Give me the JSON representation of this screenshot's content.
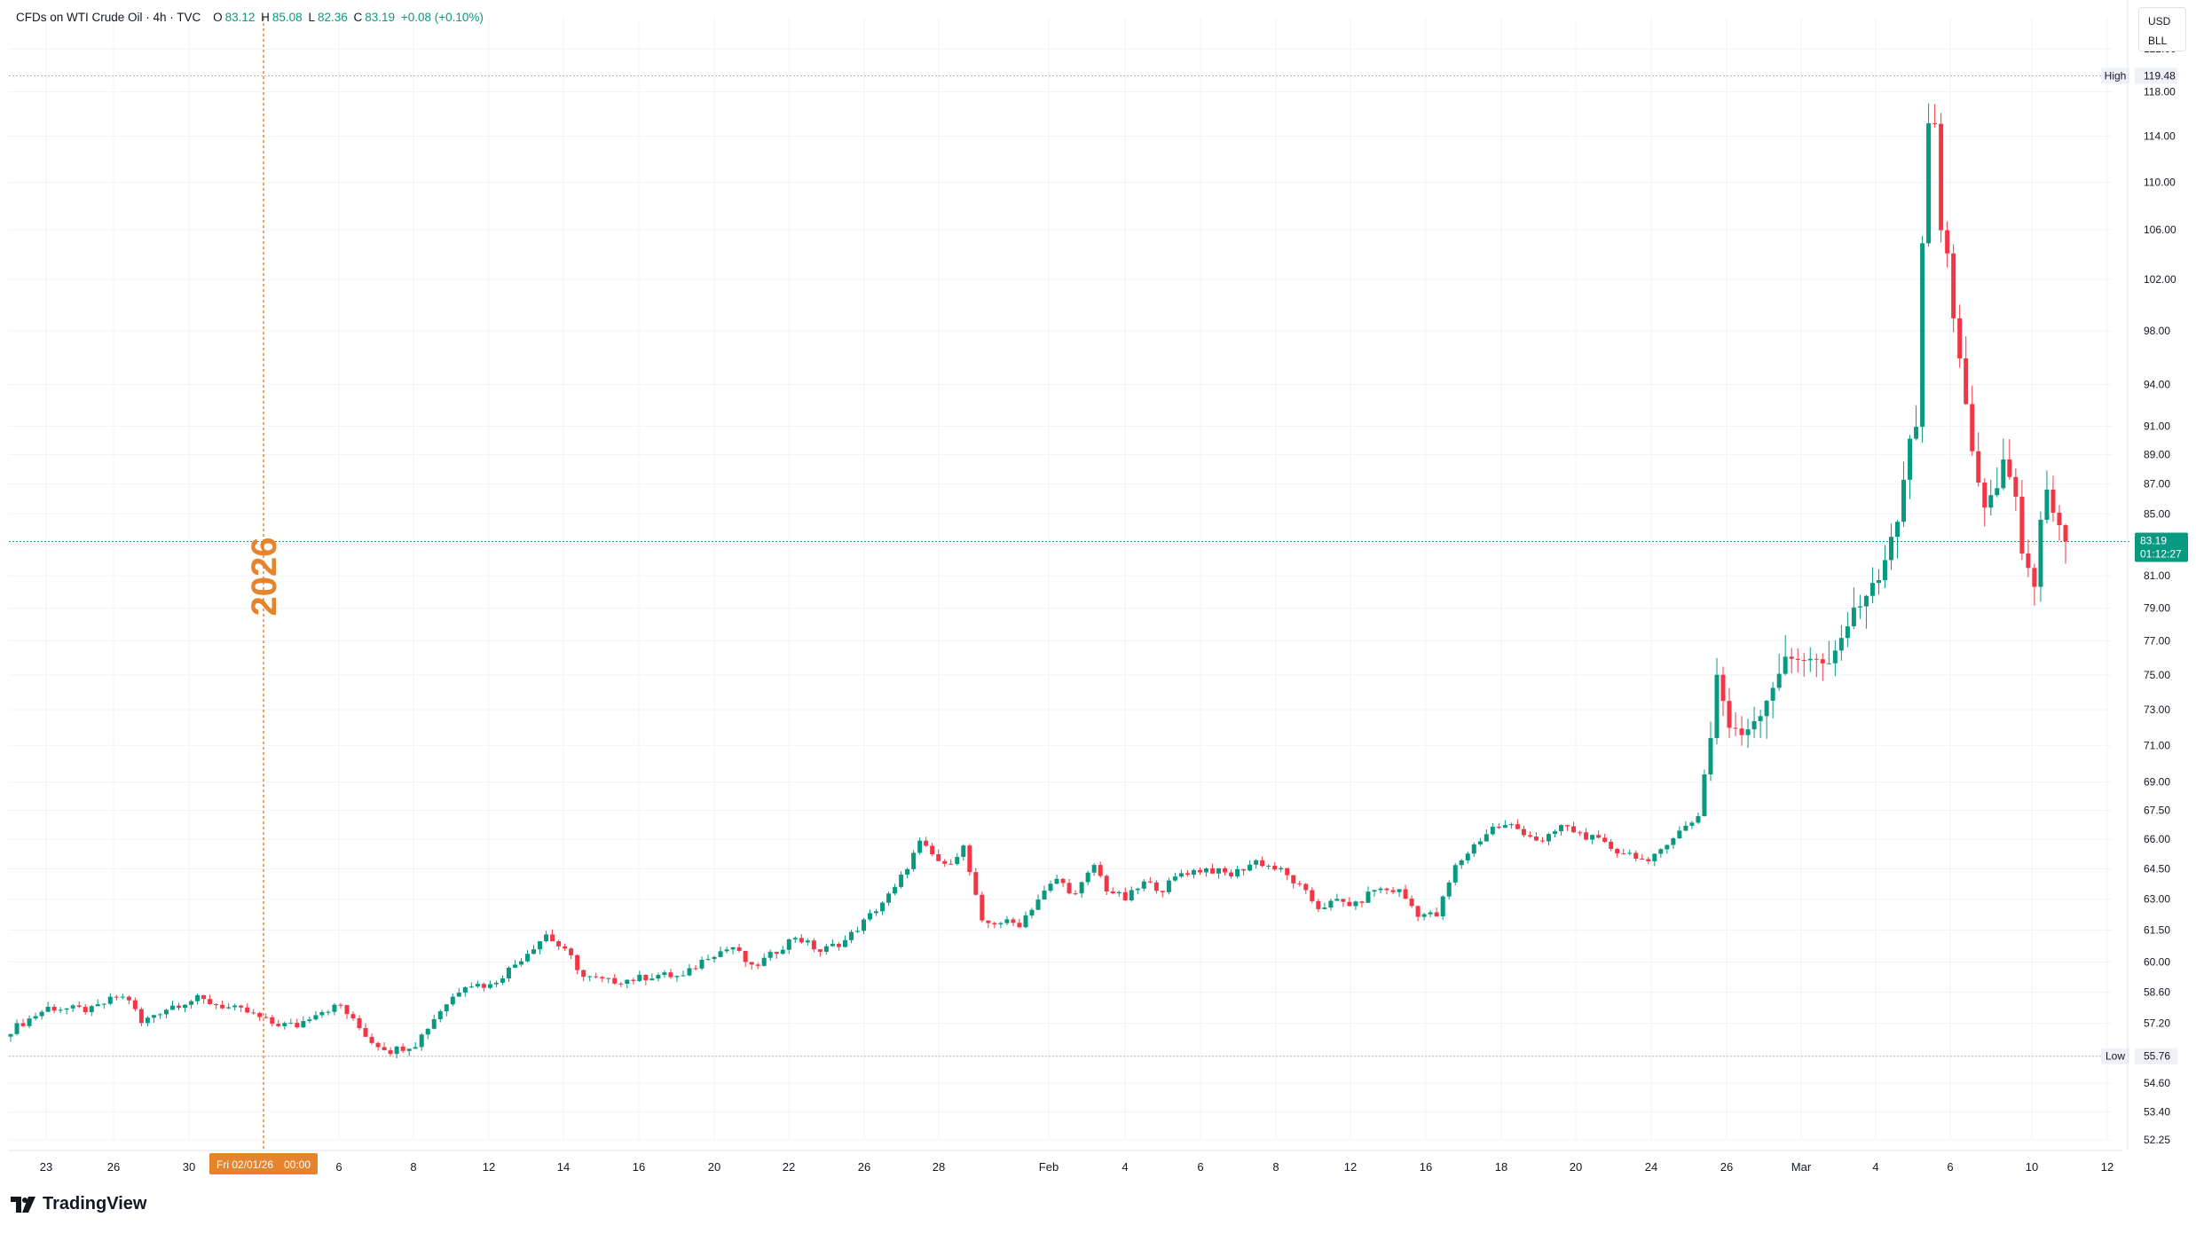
{
  "legend": {
    "title": "CFDs on WTI Crude Oil · 4h · TVC",
    "o_key": "O",
    "o_val": "83.12",
    "h_key": "H",
    "h_val": "85.08",
    "l_key": "L",
    "l_val": "82.36",
    "c_key": "C",
    "c_val": "83.19",
    "chg": "+0.08 (+0.10%)"
  },
  "currency": {
    "line1": "USD",
    "line2": "BLL"
  },
  "brand": {
    "name": "TradingView"
  },
  "colors": {
    "up": "#089981",
    "down": "#f23645",
    "event": "#e5842c",
    "grid": "#f0f3fa",
    "axis_text": "#131722"
  },
  "chart_data": {
    "type": "candlestick",
    "symbol": "CFDs on WTI Crude Oil",
    "interval": "4h",
    "scale": "log",
    "grid": true,
    "ylim": [
      52.25,
      125.0
    ],
    "y_ticks": [
      "122.00",
      "118.00",
      "114.00",
      "110.00",
      "106.00",
      "102.00",
      "98.00",
      "94.00",
      "91.00",
      "89.00",
      "87.00",
      "85.00",
      "81.00",
      "79.00",
      "77.00",
      "75.00",
      "73.00",
      "71.00",
      "69.00",
      "67.50",
      "66.00",
      "64.50",
      "63.00",
      "61.50",
      "60.00",
      "58.60",
      "57.20",
      "54.60",
      "53.40",
      "52.25"
    ],
    "x_ticks": [
      "23",
      "26",
      "30",
      "6",
      "8",
      "12",
      "14",
      "16",
      "20",
      "22",
      "26",
      "28",
      "Feb",
      "4",
      "6",
      "8",
      "12",
      "16",
      "18",
      "20",
      "24",
      "26",
      "Mar",
      "4",
      "6",
      "10",
      "12"
    ],
    "high_marker": {
      "label": "High",
      "value": "119.48"
    },
    "low_marker": {
      "label": "Low",
      "value": "55.76"
    },
    "last_price": {
      "value": "83.19",
      "countdown": "01:12:27"
    },
    "crosshair_date": "Fri 02/01/26",
    "crosshair_time": "00:00",
    "event": {
      "label": "2026"
    },
    "close_path": [
      [
        0,
        56.9
      ],
      [
        6,
        57.9
      ],
      [
        13,
        57.8
      ],
      [
        17,
        58.4
      ],
      [
        19,
        58.3
      ],
      [
        21,
        57.2
      ],
      [
        23,
        57.6
      ],
      [
        26,
        58.0
      ],
      [
        30,
        58.3
      ],
      [
        35,
        57.9
      ],
      [
        38,
        57.7
      ],
      [
        42,
        57.2
      ],
      [
        46,
        57.1
      ],
      [
        49,
        57.7
      ],
      [
        53,
        58.0
      ],
      [
        55,
        57.3
      ],
      [
        58,
        56.4
      ],
      [
        61,
        56.0
      ],
      [
        65,
        56.3
      ],
      [
        69,
        57.8
      ],
      [
        73,
        59.0
      ],
      [
        77,
        58.9
      ],
      [
        81,
        59.9
      ],
      [
        86,
        61.3
      ],
      [
        90,
        60.2
      ],
      [
        92,
        59.3
      ],
      [
        96,
        59.1
      ],
      [
        100,
        59.2
      ],
      [
        104,
        59.4
      ],
      [
        108,
        59.3
      ],
      [
        112,
        60.3
      ],
      [
        116,
        60.7
      ],
      [
        119,
        59.7
      ],
      [
        122,
        60.3
      ],
      [
        126,
        61.2
      ],
      [
        130,
        60.5
      ],
      [
        134,
        61.0
      ],
      [
        138,
        62.2
      ],
      [
        142,
        63.5
      ],
      [
        146,
        65.8
      ],
      [
        150,
        64.6
      ],
      [
        153,
        65.6
      ],
      [
        156,
        61.8
      ],
      [
        159,
        61.9
      ],
      [
        162,
        61.8
      ],
      [
        165,
        63.0
      ],
      [
        168,
        64.0
      ],
      [
        171,
        63.2
      ],
      [
        174,
        64.7
      ],
      [
        176,
        63.5
      ],
      [
        179,
        63.0
      ],
      [
        182,
        63.8
      ],
      [
        185,
        63.5
      ],
      [
        188,
        64.3
      ],
      [
        192,
        64.5
      ],
      [
        196,
        64.2
      ],
      [
        200,
        64.9
      ],
      [
        204,
        64.4
      ],
      [
        207,
        63.6
      ],
      [
        210,
        62.6
      ],
      [
        213,
        62.9
      ],
      [
        216,
        62.7
      ],
      [
        219,
        63.5
      ],
      [
        223,
        63.4
      ],
      [
        226,
        62.3
      ],
      [
        229,
        62.2
      ],
      [
        232,
        64.6
      ],
      [
        235,
        65.7
      ],
      [
        238,
        66.6
      ],
      [
        241,
        66.7
      ],
      [
        244,
        66.2
      ],
      [
        246,
        65.8
      ],
      [
        249,
        66.7
      ],
      [
        252,
        66.3
      ],
      [
        255,
        65.9
      ],
      [
        258,
        65.4
      ],
      [
        261,
        65.2
      ],
      [
        263,
        64.7
      ],
      [
        266,
        65.9
      ],
      [
        270,
        66.9
      ],
      [
        271,
        67.3
      ],
      [
        273,
        71.5
      ],
      [
        274,
        75.0
      ],
      [
        276,
        72.0
      ],
      [
        278,
        71.6
      ],
      [
        281,
        72.8
      ],
      [
        285,
        75.9
      ],
      [
        289,
        76.0
      ],
      [
        292,
        75.5
      ],
      [
        296,
        78.8
      ],
      [
        300,
        80.9
      ],
      [
        303,
        84.5
      ],
      [
        305,
        90.0
      ],
      [
        306,
        91.1
      ],
      [
        307,
        105.0
      ],
      [
        308,
        115.0
      ],
      [
        309,
        114.8
      ],
      [
        310,
        106.0
      ],
      [
        311,
        104.0
      ],
      [
        312,
        99.0
      ],
      [
        313,
        96.0
      ],
      [
        315,
        89.0
      ],
      [
        317,
        85.6
      ],
      [
        319,
        86.5
      ],
      [
        320,
        88.5
      ],
      [
        322,
        86.0
      ],
      [
        323,
        82.5
      ],
      [
        325,
        80.4
      ],
      [
        326,
        84.5
      ],
      [
        327,
        86.5
      ],
      [
        328,
        85.0
      ],
      [
        330,
        83.19
      ]
    ]
  }
}
